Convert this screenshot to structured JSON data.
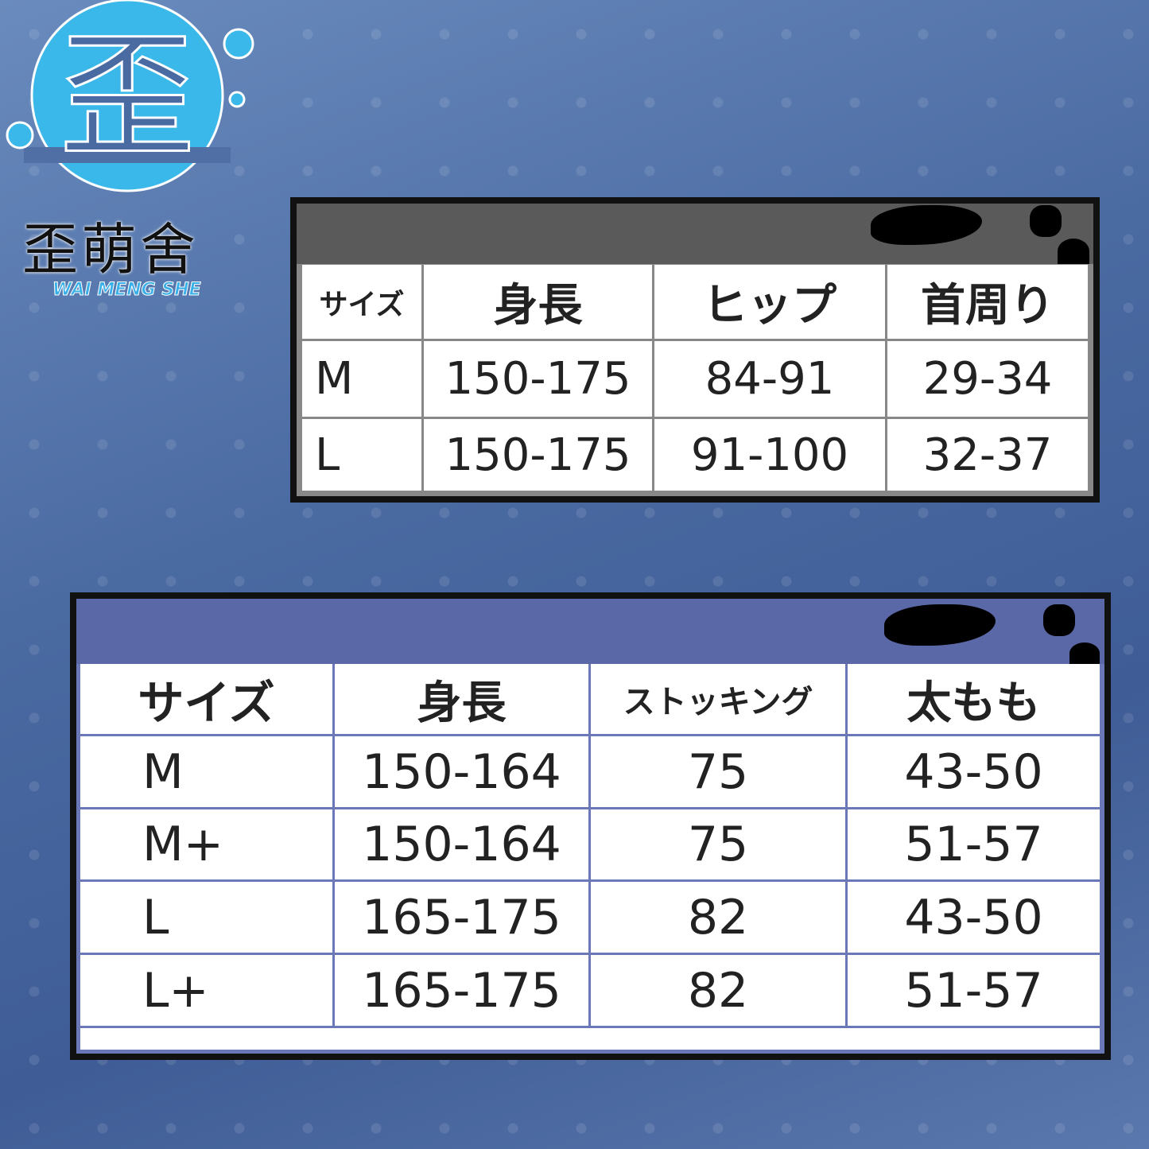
{
  "brand": {
    "name_cn": "歪萌舍",
    "name_en": "WAI MENG SHE",
    "logo_glyph": "歪",
    "logo_color": "#3bb8ea"
  },
  "table1": {
    "header_band_color": "#5a5a5a",
    "headers": [
      "サイズ",
      "身長",
      "ヒップ",
      "首周り"
    ],
    "rows": [
      [
        "M",
        "150-175",
        "84-91",
        "29-34"
      ],
      [
        "L",
        "150-175",
        "91-100",
        "32-37"
      ]
    ]
  },
  "table2": {
    "header_band_color": "#5a68a8",
    "headers": [
      "サイズ",
      "身長",
      "ストッキング",
      "太もも"
    ],
    "rows": [
      [
        "M",
        "150-164",
        "75",
        "43-50"
      ],
      [
        "M+",
        "150-164",
        "75",
        "51-57"
      ],
      [
        "L",
        "165-175",
        "82",
        "43-50"
      ],
      [
        "L+",
        "165-175",
        "82",
        "51-57"
      ]
    ]
  }
}
